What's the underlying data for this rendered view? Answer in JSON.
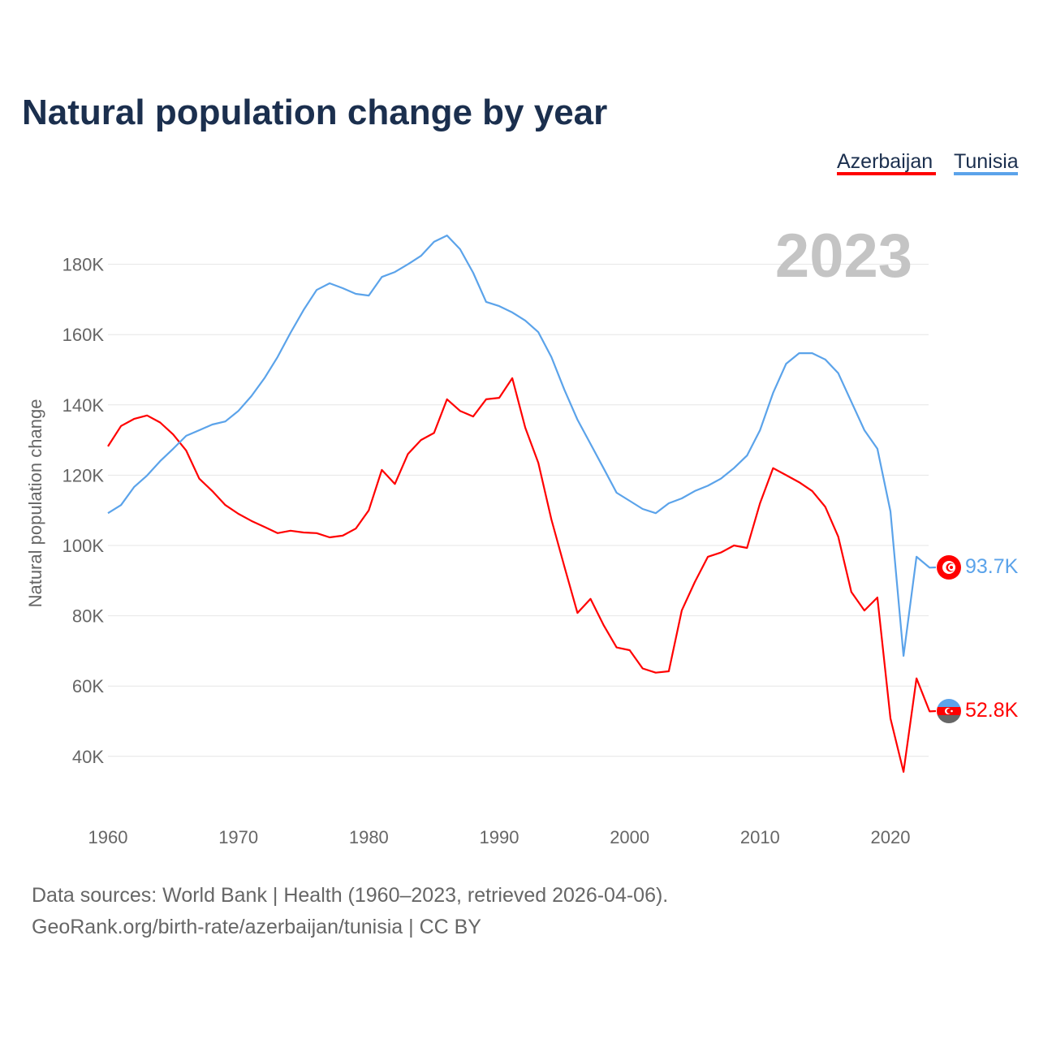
{
  "chart_data": {
    "type": "line",
    "title": "Natural population change by year",
    "ylabel": "Natural population change",
    "xlabel": "",
    "xlim": [
      1960,
      2023
    ],
    "ylim": [
      26000,
      196000
    ],
    "x_ticks": [
      1960,
      1970,
      1980,
      1990,
      2000,
      2010,
      2020
    ],
    "y_ticks": [
      40000,
      60000,
      80000,
      100000,
      120000,
      140000,
      160000,
      180000
    ],
    "y_tick_labels": [
      "40K",
      "60K",
      "80K",
      "100K",
      "120K",
      "140K",
      "160K",
      "180K"
    ],
    "x_tick_labels": [
      "1960",
      "1970",
      "1980",
      "1990",
      "2000",
      "2010",
      "2020"
    ],
    "grid": true,
    "legend_position": "top-right",
    "year_label": "2023",
    "series": [
      {
        "name": "Azerbaijan",
        "color": "#ff0000",
        "end_label": "52.8K",
        "flag": "azerbaijan-flag",
        "values": [
          128.2,
          134,
          136,
          137,
          135,
          131.6,
          127,
          119,
          115.5,
          111.5,
          109,
          107,
          105.3,
          103.5,
          104.2,
          103.7,
          103.5,
          102.3,
          102.8,
          104.8,
          110,
          121.5,
          117.5,
          126,
          130,
          132,
          141.6,
          138.3,
          136.7,
          141.6,
          142,
          147.6,
          133.5,
          123.5,
          107.4,
          94,
          80.8,
          84.8,
          77.4,
          71,
          70.2,
          65,
          63.8,
          64.2,
          81.5,
          89.6,
          96.8,
          98,
          100,
          99.3,
          112,
          122,
          120,
          118,
          115.5,
          111,
          102.5,
          86.8,
          81.5,
          85.2,
          50.8,
          35.6,
          62.2,
          52.8
        ]
      },
      {
        "name": "Tunisia",
        "color": "#5ba3ea",
        "end_label": "93.7K",
        "flag": "tunisia-flag",
        "values": [
          109.2,
          111.5,
          116.6,
          119.9,
          124,
          127.5,
          131.2,
          132.8,
          134.4,
          135.3,
          138.3,
          142.5,
          147.6,
          153.6,
          160.5,
          167,
          172.7,
          174.6,
          173.2,
          171.6,
          171.1,
          176.4,
          177.8,
          180,
          182.4,
          186.4,
          188.2,
          184.3,
          177.6,
          169.3,
          168.1,
          166.3,
          164,
          160.7,
          153.6,
          144.3,
          135.8,
          128.9,
          122,
          115,
          112.7,
          110.4,
          109.2,
          112,
          113.4,
          115.5,
          117,
          119,
          122,
          125.6,
          132.8,
          143.4,
          151.7,
          154.7,
          154.7,
          152.9,
          149,
          140.9,
          132.8,
          127.5,
          109.7,
          68.6,
          96.8,
          93.7
        ]
      }
    ],
    "value_unit": "thousands"
  },
  "footer": {
    "line1": "Data sources: World Bank | Health (1960–2023, retrieved 2026-04-06).",
    "line2": "GeoRank.org/birth-rate/azerbaijan/tunisia | CC BY"
  }
}
